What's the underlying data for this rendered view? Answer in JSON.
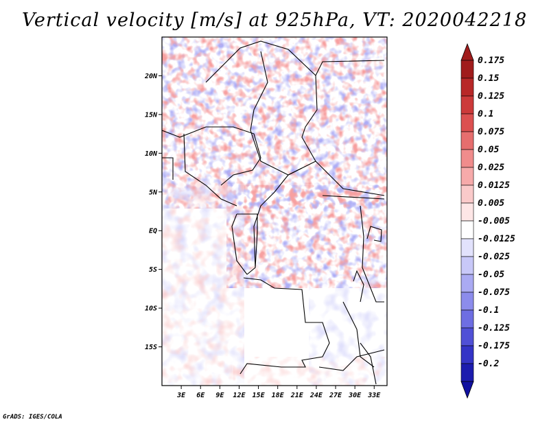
{
  "title": "Vertical velocity [m/s] at 925hPa, VT: 2020042218",
  "credit": "GrADS: IGES/COLA",
  "map": {
    "lon_range": [
      0,
      35
    ],
    "lat_range": [
      -20,
      25
    ],
    "lat_ticks": [
      {
        "value": 20,
        "label": "20N"
      },
      {
        "value": 15,
        "label": "15N"
      },
      {
        "value": 10,
        "label": "10N"
      },
      {
        "value": 5,
        "label": "5N"
      },
      {
        "value": 0,
        "label": "EQ"
      },
      {
        "value": -5,
        "label": "5S"
      },
      {
        "value": -10,
        "label": "10S"
      },
      {
        "value": -15,
        "label": "15S"
      }
    ],
    "lon_ticks": [
      {
        "value": 3,
        "label": "3E"
      },
      {
        "value": 6,
        "label": "6E"
      },
      {
        "value": 9,
        "label": "9E"
      },
      {
        "value": 12,
        "label": "12E"
      },
      {
        "value": 15,
        "label": "15E"
      },
      {
        "value": 18,
        "label": "18E"
      },
      {
        "value": 21,
        "label": "21E"
      },
      {
        "value": 24,
        "label": "24E"
      },
      {
        "value": 27,
        "label": "27E"
      },
      {
        "value": 30,
        "label": "30E"
      },
      {
        "value": 33,
        "label": "33E"
      }
    ]
  },
  "colorbar": {
    "levels": [
      {
        "label": "0.175",
        "color": "#a01c1c"
      },
      {
        "label": "0.15",
        "color": "#b82828"
      },
      {
        "label": "0.125",
        "color": "#cc3a3a"
      },
      {
        "label": "0.1",
        "color": "#dc5050"
      },
      {
        "label": "0.075",
        "color": "#e66e6e"
      },
      {
        "label": "0.05",
        "color": "#f08c8c"
      },
      {
        "label": "0.025",
        "color": "#f6aaaa"
      },
      {
        "label": "0.0125",
        "color": "#facaca"
      },
      {
        "label": "0.005",
        "color": "#fde6e6"
      },
      {
        "label": "-0.005",
        "color": "#ffffff"
      },
      {
        "label": "-0.0125",
        "color": "#e2e2fc"
      },
      {
        "label": "-0.025",
        "color": "#c8c8f8"
      },
      {
        "label": "-0.05",
        "color": "#aaaaf2"
      },
      {
        "label": "-0.075",
        "color": "#8c8cec"
      },
      {
        "label": "-0.1",
        "color": "#6e6ee2"
      },
      {
        "label": "-0.125",
        "color": "#5050d6"
      },
      {
        "label": "-0.175",
        "color": "#3434c6"
      },
      {
        "label": "-0.2",
        "color": "#1c1cae"
      }
    ],
    "top_color": "#a01c1c",
    "bottom_color": "#1010a0"
  }
}
